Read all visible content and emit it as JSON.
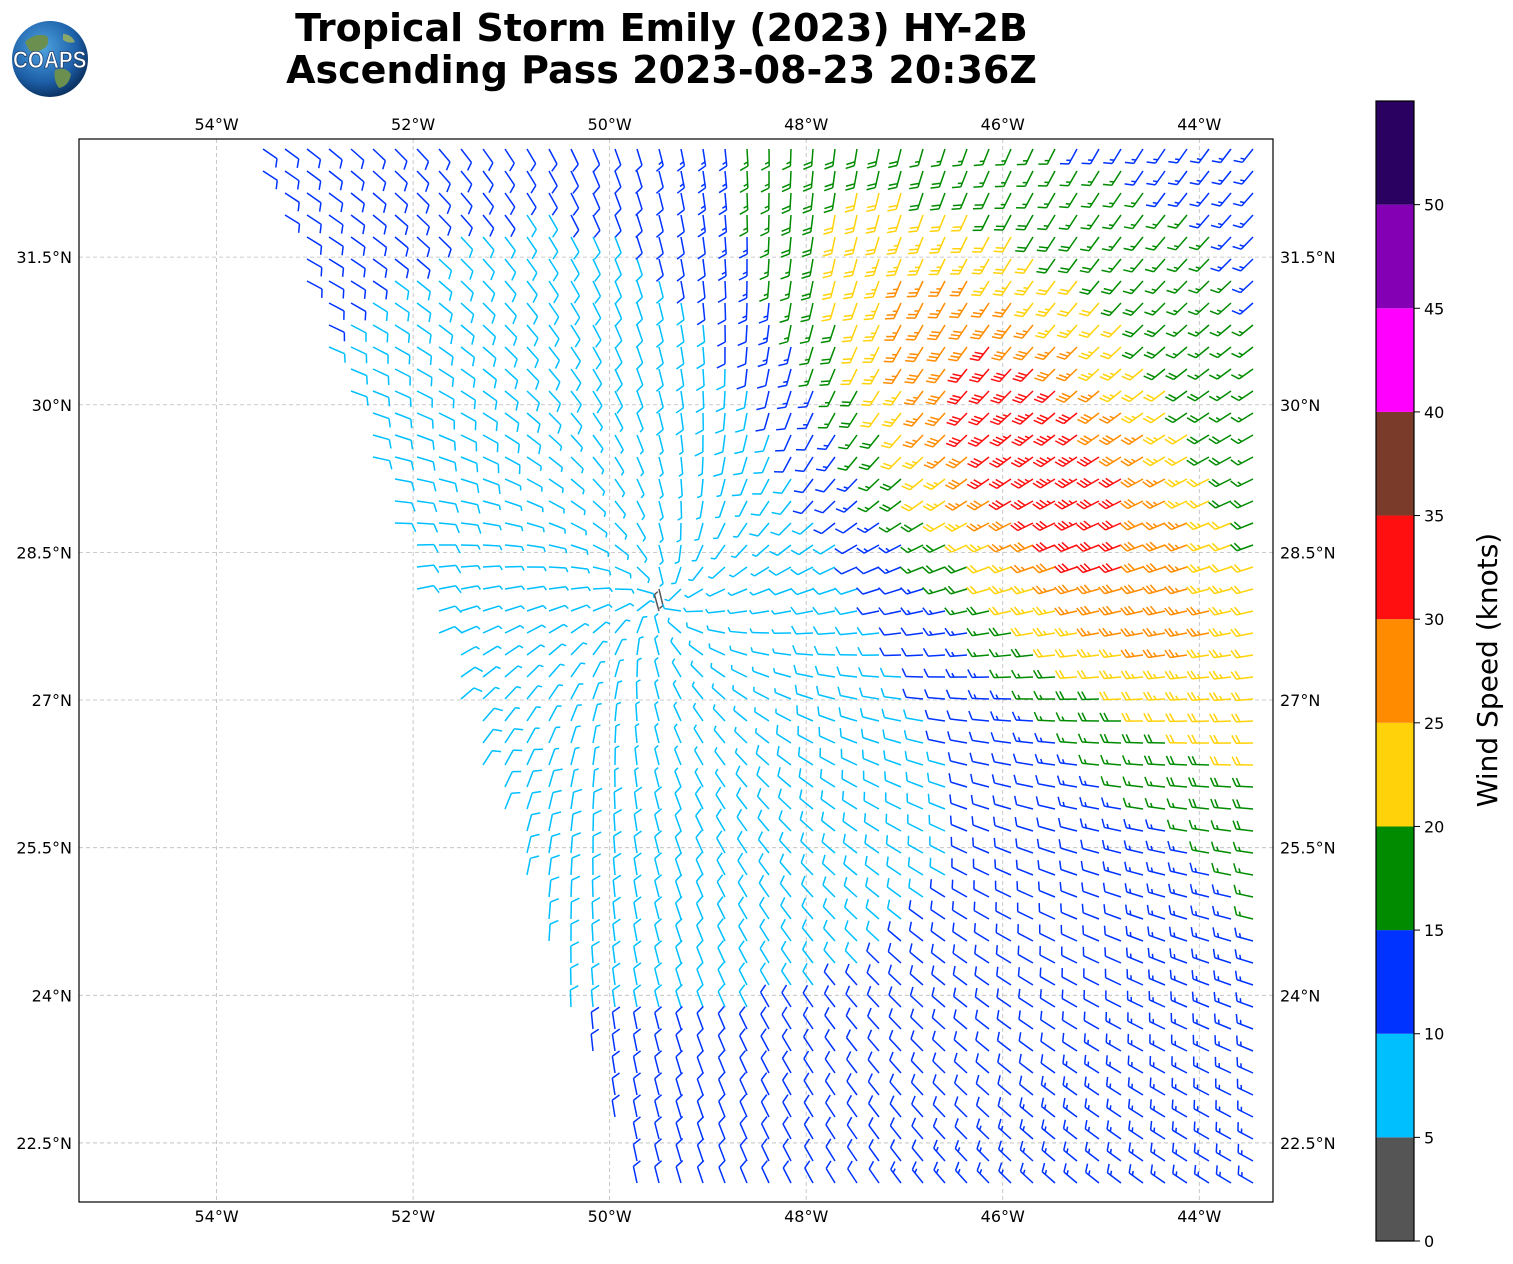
{
  "title": {
    "line1": "Tropical Storm Emily (2023) HY-2B",
    "line2": "Ascending Pass 2023-08-23 20:36Z"
  },
  "logo_text": "COAPS",
  "map": {
    "lon_labels": [
      "54°W",
      "52°W",
      "50°W",
      "48°W",
      "46°W",
      "44°W"
    ],
    "lat_labels": [
      "31.5°N",
      "30°N",
      "28.5°N",
      "27°N",
      "25.5°N",
      "24°N",
      "22.5°N"
    ],
    "lon_range": [
      -55.4,
      -43.25
    ],
    "lat_range": [
      21.9,
      32.7
    ],
    "storm_center": {
      "lon": -49.5,
      "lat": 28.0
    },
    "gridlines": true
  },
  "colorbar": {
    "label": "Wind Speed (knots)",
    "tick_labels": [
      "0",
      "5",
      "10",
      "15",
      "20",
      "25",
      "30",
      "35",
      "40",
      "45",
      "50"
    ],
    "bins": [
      {
        "min": 0,
        "max": 5,
        "color": "#555555"
      },
      {
        "min": 5,
        "max": 10,
        "color": "#00bfff"
      },
      {
        "min": 10,
        "max": 15,
        "color": "#0033ff"
      },
      {
        "min": 15,
        "max": 20,
        "color": "#008b00"
      },
      {
        "min": 20,
        "max": 25,
        "color": "#ffd20a"
      },
      {
        "min": 25,
        "max": 30,
        "color": "#ff8c00"
      },
      {
        "min": 30,
        "max": 35,
        "color": "#ff0f0f"
      },
      {
        "min": 35,
        "max": 40,
        "color": "#7b3b2b"
      },
      {
        "min": 40,
        "max": 45,
        "color": "#ff00ff"
      },
      {
        "min": 45,
        "max": 50,
        "color": "#8400b4"
      },
      {
        "min": 50,
        "max": 55,
        "color": "#2a0060"
      }
    ]
  }
}
